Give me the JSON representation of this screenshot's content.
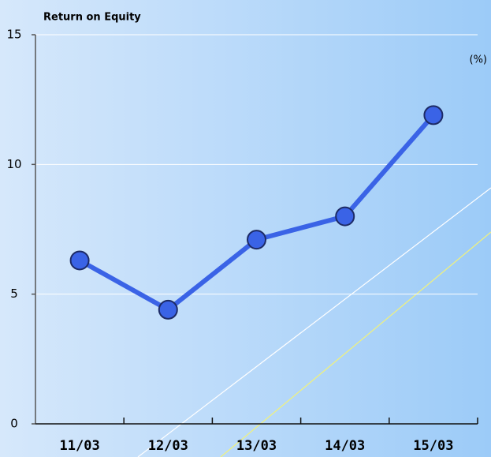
{
  "chart_data": {
    "type": "line",
    "title": "Return on Equity",
    "unit": "(%)",
    "categories": [
      "11/03",
      "12/03",
      "13/03",
      "14/03",
      "15/03"
    ],
    "series": [
      {
        "name": "Return on Equity",
        "color": "#3a63e6",
        "values": [
          6.3,
          4.4,
          7.1,
          8.0,
          11.9
        ]
      }
    ],
    "ylim": [
      0,
      15
    ],
    "yticks": [
      0,
      5,
      10,
      15
    ],
    "grid": true
  }
}
